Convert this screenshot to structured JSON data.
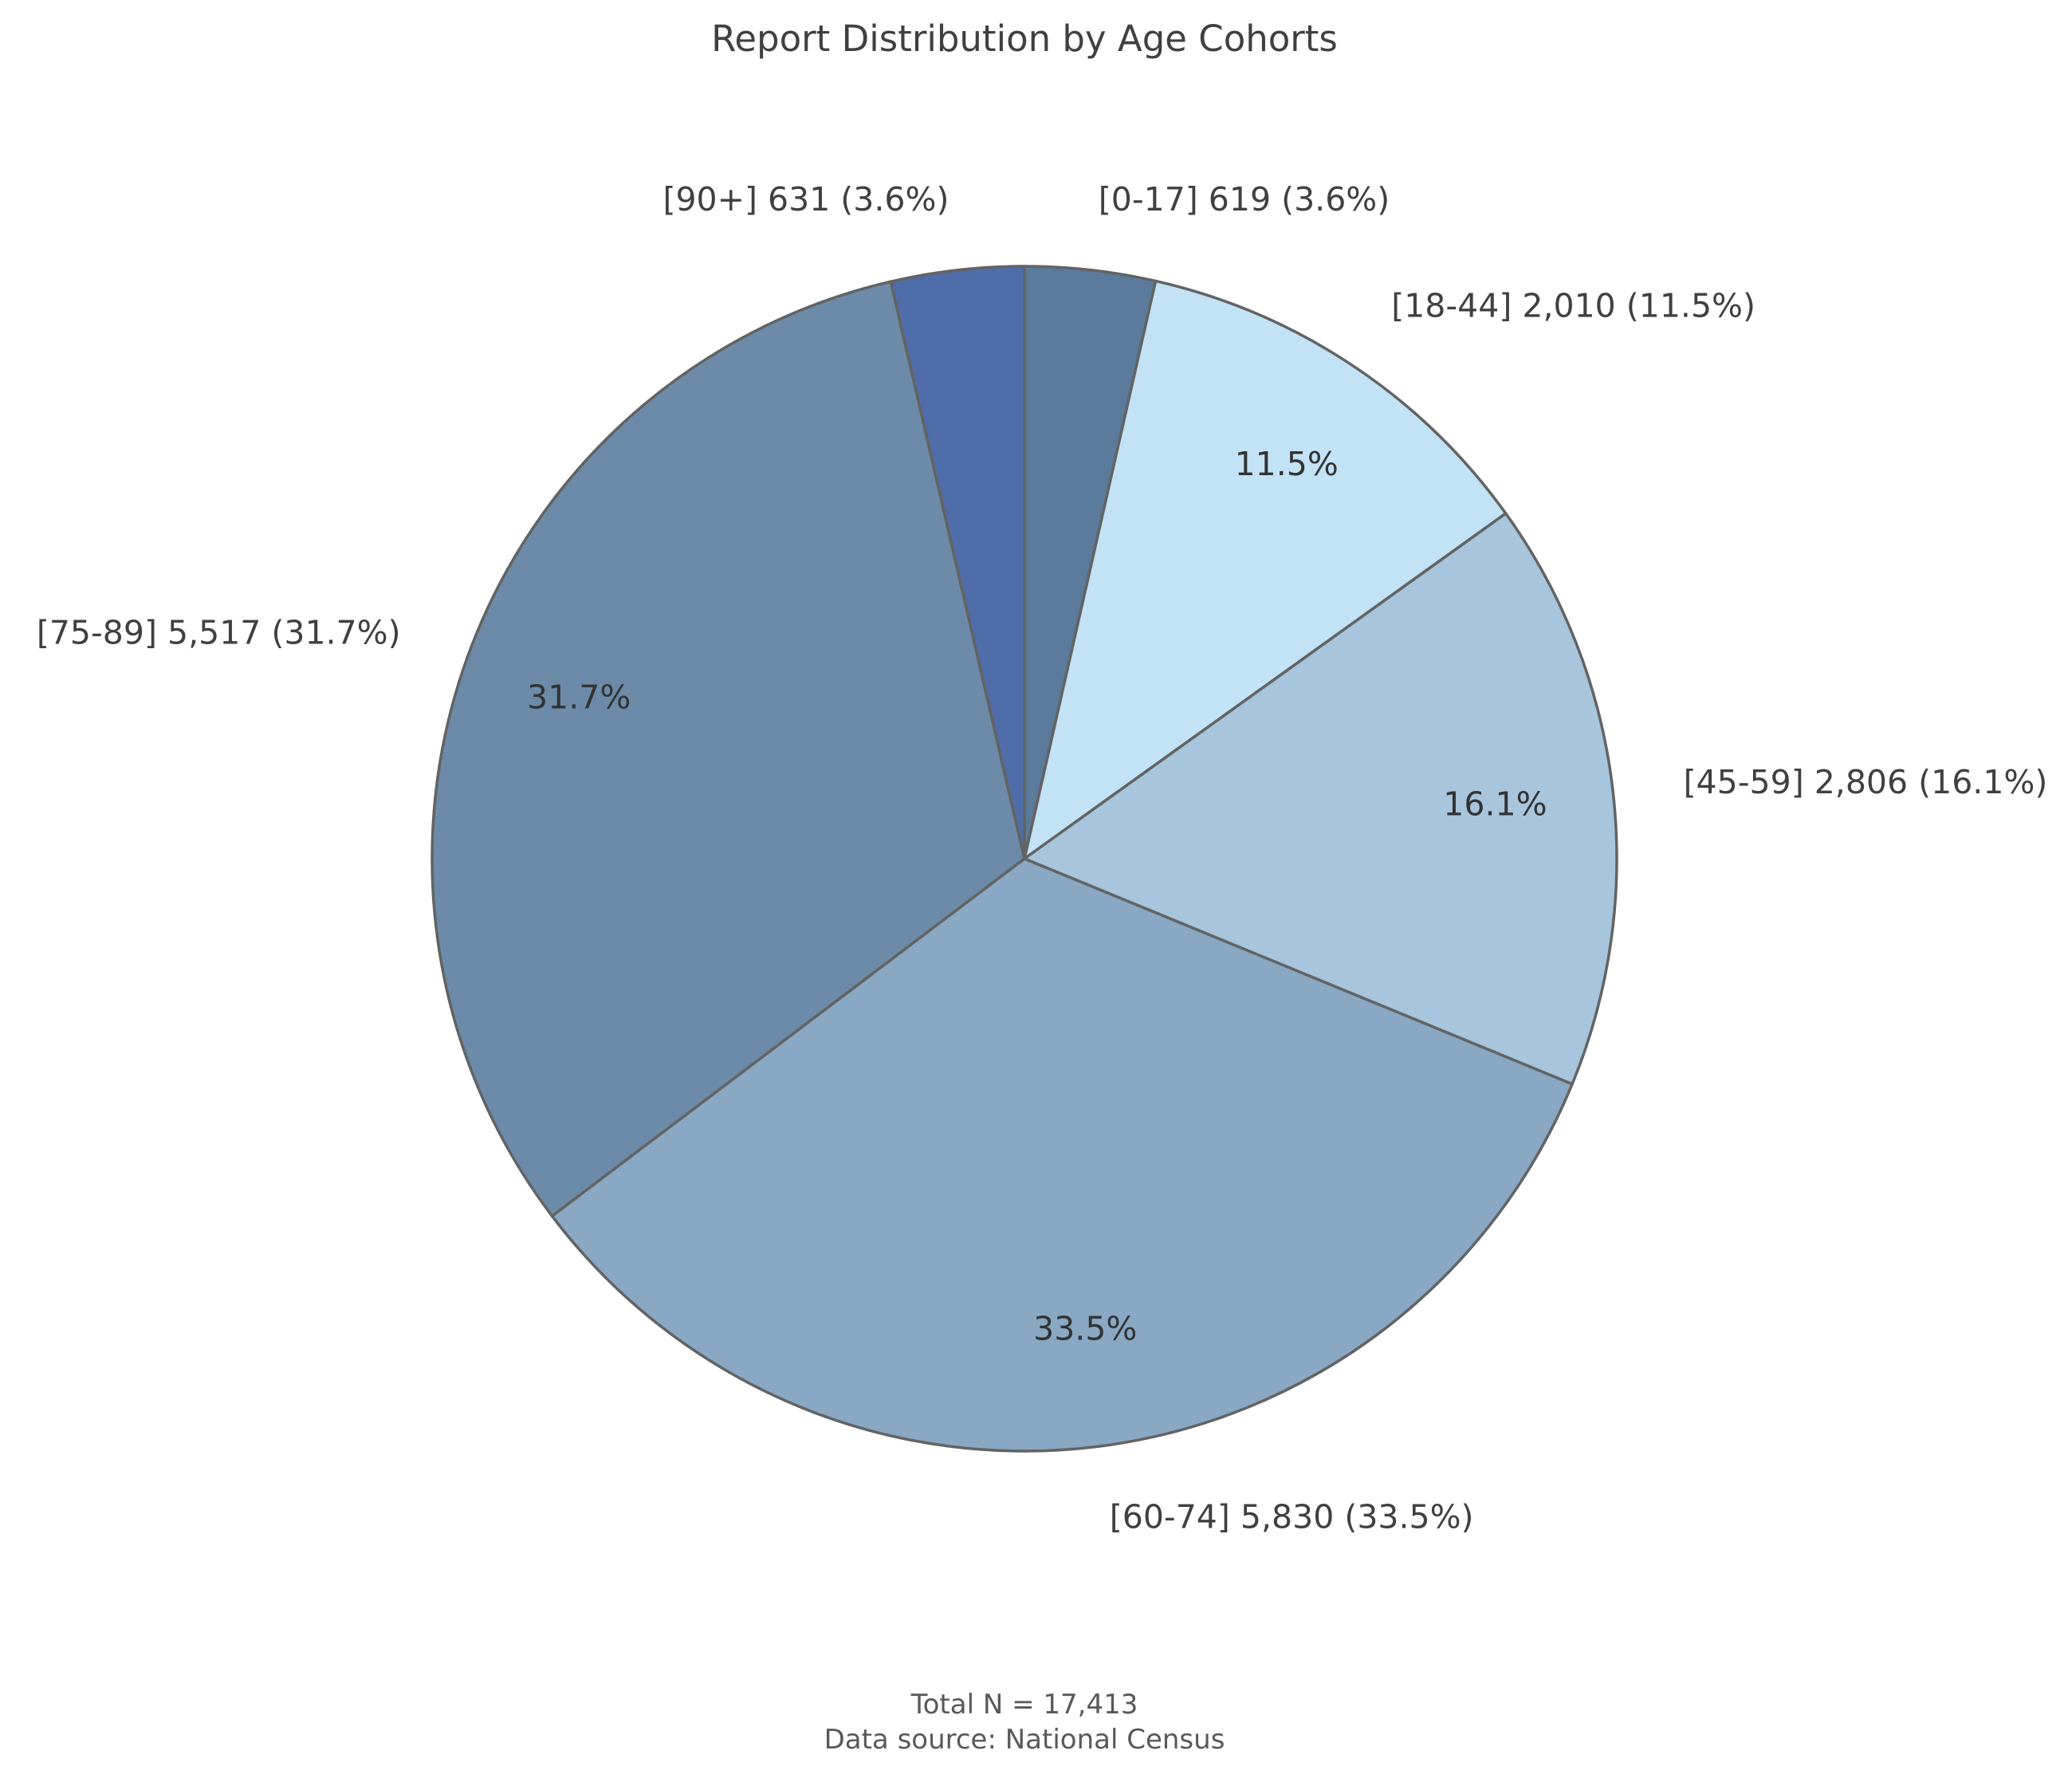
{
  "chart_data": {
    "type": "pie",
    "title": "Report Distribution by Age Cohorts",
    "start_angle_deg": 90,
    "direction": "clockwise",
    "slices": [
      {
        "category": "[0-17]",
        "value": 619,
        "percent": 3.6,
        "label": "[0-17] 619 (3.6%)",
        "pct_label": "",
        "color": "#5a7b9c"
      },
      {
        "category": "[18-44]",
        "value": 2010,
        "percent": 11.5,
        "label": "[18-44] 2,010 (11.5%)",
        "pct_label": "11.5%",
        "color": "#c2e2f5"
      },
      {
        "category": "[45-59]",
        "value": 2806,
        "percent": 16.1,
        "label": "[45-59] 2,806 (16.1%)",
        "pct_label": "16.1%",
        "color": "#a7c5dc"
      },
      {
        "category": "[60-74]",
        "value": 5830,
        "percent": 33.5,
        "label": "[60-74] 5,830 (33.5%)",
        "pct_label": "33.5%",
        "color": "#88a8c4"
      },
      {
        "category": "[75-89]",
        "value": 5517,
        "percent": 31.7,
        "label": "[75-89] 5,517 (31.7%)",
        "pct_label": "31.7%",
        "color": "#6b8ba9"
      },
      {
        "category": "[90+]",
        "value": 631,
        "percent": 3.6,
        "label": "[90+] 631 (3.6%)",
        "pct_label": "",
        "color": "#4f6da8"
      }
    ],
    "edge_color": "#636363",
    "footer": {
      "total": "Total N = 17,413",
      "source": "Data source: National Census"
    }
  }
}
